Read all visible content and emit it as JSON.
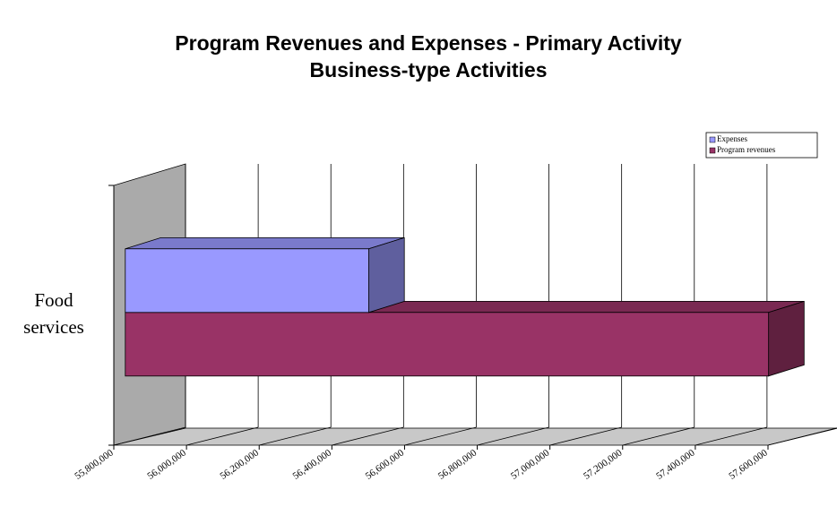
{
  "chart_data": {
    "type": "bar3d_horizontal",
    "title": "Program Revenues and Expenses - Primary Activity",
    "subtitle": "Business-type Activities",
    "categories": [
      "Food services"
    ],
    "series": [
      {
        "name": "Expenses",
        "color": "#9999ff",
        "values": [
          56470000
        ]
      },
      {
        "name": "Program revenues",
        "color": "#993366",
        "values": [
          57570000
        ]
      }
    ],
    "xlim": [
      55800000,
      57600000
    ],
    "xticks": [
      {
        "value": 55800000,
        "label": "55,800,000"
      },
      {
        "value": 56000000,
        "label": "56,000,000"
      },
      {
        "value": 56200000,
        "label": "56,200,000"
      },
      {
        "value": 56400000,
        "label": "56,400,000"
      },
      {
        "value": 56600000,
        "label": "56,600,000"
      },
      {
        "value": 56800000,
        "label": "56,800,000"
      },
      {
        "value": 57000000,
        "label": "57,000,000"
      },
      {
        "value": 57200000,
        "label": "57,200,000"
      },
      {
        "value": 57400000,
        "label": "57,400,000"
      },
      {
        "value": 57600000,
        "label": "57,600,000"
      }
    ],
    "grid": true,
    "legend": "top-right"
  }
}
